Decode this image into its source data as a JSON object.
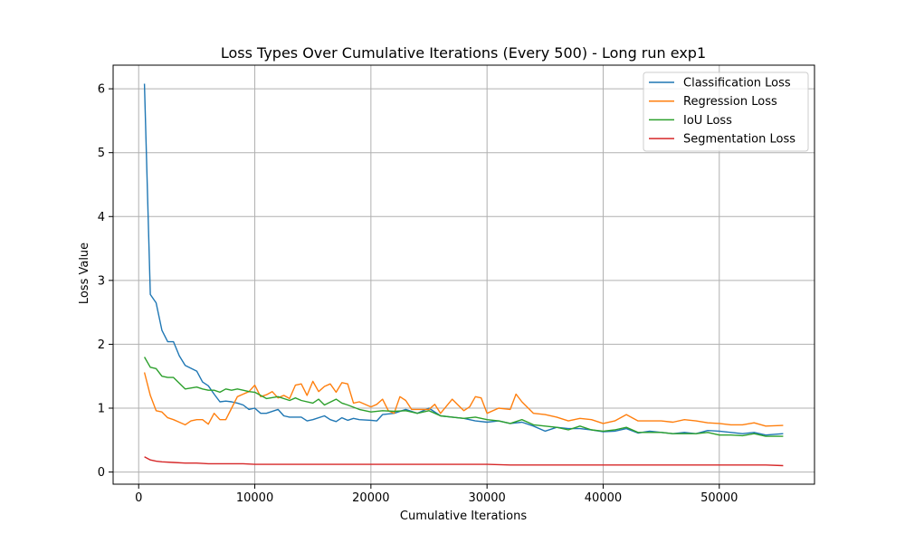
{
  "chart_data": {
    "type": "line",
    "title": "Loss Types Over Cumulative Iterations (Every 500) - Long run exp1",
    "xlabel": "Cumulative Iterations",
    "ylabel": "Loss Value",
    "xlim": [
      -2200,
      58200
    ],
    "ylim": [
      -0.19,
      6.37
    ],
    "xticks": [
      0,
      10000,
      20000,
      30000,
      40000,
      50000
    ],
    "yticks": [
      0,
      1,
      2,
      3,
      4,
      5,
      6
    ],
    "grid": true,
    "legend_position": "top-right",
    "series": [
      {
        "name": "Classification Loss",
        "color": "#1f77b4",
        "x": [
          500,
          1000,
          1500,
          2000,
          2500,
          3000,
          3500,
          4000,
          5000,
          5500,
          6000,
          6500,
          7000,
          7500,
          8000,
          8500,
          9000,
          9500,
          10000,
          10500,
          11000,
          12000,
          12500,
          13000,
          14000,
          14500,
          15000,
          16000,
          16500,
          17000,
          17500,
          18000,
          18500,
          19000,
          20000,
          20500,
          21000,
          22000,
          23000,
          24000,
          25000,
          26000,
          27000,
          28000,
          29000,
          30000,
          31000,
          32000,
          33000,
          34000,
          35000,
          36000,
          37000,
          38000,
          39000,
          40000,
          41000,
          42000,
          43000,
          44000,
          45000,
          46000,
          47000,
          48000,
          49000,
          50000,
          51000,
          52000,
          53000,
          54000,
          55500
        ],
        "values": [
          6.08,
          2.78,
          2.65,
          2.22,
          2.04,
          2.04,
          1.82,
          1.67,
          1.58,
          1.41,
          1.35,
          1.22,
          1.1,
          1.11,
          1.1,
          1.08,
          1.05,
          0.98,
          1.0,
          0.92,
          0.92,
          0.98,
          0.88,
          0.86,
          0.86,
          0.8,
          0.82,
          0.88,
          0.82,
          0.79,
          0.85,
          0.81,
          0.84,
          0.82,
          0.81,
          0.8,
          0.9,
          0.92,
          0.98,
          0.92,
          1.0,
          0.88,
          0.86,
          0.84,
          0.8,
          0.78,
          0.8,
          0.76,
          0.78,
          0.72,
          0.64,
          0.7,
          0.68,
          0.68,
          0.66,
          0.63,
          0.64,
          0.68,
          0.61,
          0.64,
          0.62,
          0.6,
          0.62,
          0.6,
          0.65,
          0.64,
          0.62,
          0.6,
          0.62,
          0.58,
          0.6
        ]
      },
      {
        "name": "Regression Loss",
        "color": "#ff7f0e",
        "x": [
          500,
          1000,
          1500,
          2000,
          2500,
          3000,
          3500,
          4000,
          4500,
          5000,
          5500,
          6000,
          6500,
          7000,
          7500,
          8000,
          8500,
          9000,
          9500,
          10000,
          10500,
          11000,
          11500,
          12000,
          12500,
          13000,
          13500,
          14000,
          14500,
          15000,
          15500,
          16000,
          16500,
          17000,
          17500,
          18000,
          18500,
          19000,
          20000,
          20500,
          21000,
          21500,
          22000,
          22500,
          23000,
          23500,
          24000,
          25000,
          25500,
          26000,
          27000,
          27500,
          28000,
          28500,
          29000,
          29500,
          30000,
          31000,
          32000,
          32500,
          33000,
          34000,
          35000,
          36000,
          37000,
          38000,
          39000,
          40000,
          41000,
          42000,
          43000,
          44000,
          45000,
          46000,
          47000,
          48000,
          49000,
          50000,
          51000,
          52000,
          53000,
          54000,
          55500
        ],
        "values": [
          1.56,
          1.2,
          0.96,
          0.94,
          0.85,
          0.82,
          0.78,
          0.74,
          0.8,
          0.82,
          0.82,
          0.75,
          0.92,
          0.82,
          0.82,
          1.0,
          1.18,
          1.22,
          1.26,
          1.36,
          1.18,
          1.21,
          1.26,
          1.16,
          1.2,
          1.15,
          1.36,
          1.38,
          1.2,
          1.42,
          1.26,
          1.34,
          1.38,
          1.25,
          1.4,
          1.38,
          1.08,
          1.1,
          1.02,
          1.06,
          1.14,
          0.96,
          0.92,
          1.18,
          1.12,
          0.98,
          0.98,
          0.98,
          1.06,
          0.92,
          1.14,
          1.05,
          0.96,
          1.02,
          1.18,
          1.16,
          0.92,
          1.0,
          0.98,
          1.22,
          1.1,
          0.92,
          0.9,
          0.86,
          0.8,
          0.84,
          0.82,
          0.76,
          0.8,
          0.9,
          0.8,
          0.8,
          0.8,
          0.78,
          0.82,
          0.8,
          0.77,
          0.76,
          0.74,
          0.74,
          0.77,
          0.72,
          0.73
        ]
      },
      {
        "name": "IoU Loss",
        "color": "#2ca02c",
        "x": [
          500,
          1000,
          1500,
          2000,
          2500,
          3000,
          4000,
          5000,
          5500,
          6000,
          6500,
          7000,
          7500,
          8000,
          8500,
          9000,
          9500,
          10000,
          10500,
          11000,
          12000,
          13000,
          13500,
          14000,
          15000,
          15500,
          16000,
          17000,
          17500,
          18000,
          19000,
          20000,
          21000,
          22000,
          23000,
          24000,
          25000,
          26000,
          27000,
          28000,
          29000,
          30000,
          31000,
          32000,
          33000,
          34000,
          35000,
          36000,
          37000,
          38000,
          39000,
          40000,
          41000,
          42000,
          43000,
          44000,
          45000,
          46000,
          47000,
          48000,
          49000,
          50000,
          51000,
          52000,
          53000,
          54000,
          55500
        ],
        "values": [
          1.8,
          1.64,
          1.62,
          1.5,
          1.48,
          1.48,
          1.3,
          1.33,
          1.3,
          1.28,
          1.28,
          1.25,
          1.3,
          1.28,
          1.3,
          1.28,
          1.26,
          1.25,
          1.2,
          1.15,
          1.18,
          1.12,
          1.16,
          1.12,
          1.08,
          1.14,
          1.05,
          1.14,
          1.08,
          1.05,
          0.98,
          0.94,
          0.96,
          0.95,
          0.96,
          0.92,
          0.96,
          0.88,
          0.86,
          0.84,
          0.86,
          0.82,
          0.8,
          0.76,
          0.82,
          0.74,
          0.72,
          0.7,
          0.66,
          0.72,
          0.66,
          0.64,
          0.66,
          0.7,
          0.62,
          0.62,
          0.62,
          0.6,
          0.6,
          0.6,
          0.62,
          0.58,
          0.58,
          0.57,
          0.6,
          0.56,
          0.56
        ]
      },
      {
        "name": "Segmentation Loss",
        "color": "#d62728",
        "x": [
          500,
          1000,
          1500,
          2000,
          3000,
          4000,
          5000,
          6000,
          7000,
          8000,
          9000,
          10000,
          12000,
          14000,
          16000,
          18000,
          20000,
          22000,
          24000,
          26000,
          28000,
          30000,
          32000,
          34000,
          36000,
          38000,
          40000,
          42000,
          44000,
          46000,
          48000,
          50000,
          52000,
          54000,
          55500
        ],
        "values": [
          0.24,
          0.19,
          0.17,
          0.16,
          0.15,
          0.14,
          0.14,
          0.13,
          0.13,
          0.13,
          0.13,
          0.12,
          0.12,
          0.12,
          0.12,
          0.12,
          0.12,
          0.12,
          0.12,
          0.12,
          0.12,
          0.12,
          0.11,
          0.11,
          0.11,
          0.11,
          0.11,
          0.11,
          0.11,
          0.11,
          0.11,
          0.11,
          0.11,
          0.11,
          0.1
        ]
      }
    ]
  }
}
